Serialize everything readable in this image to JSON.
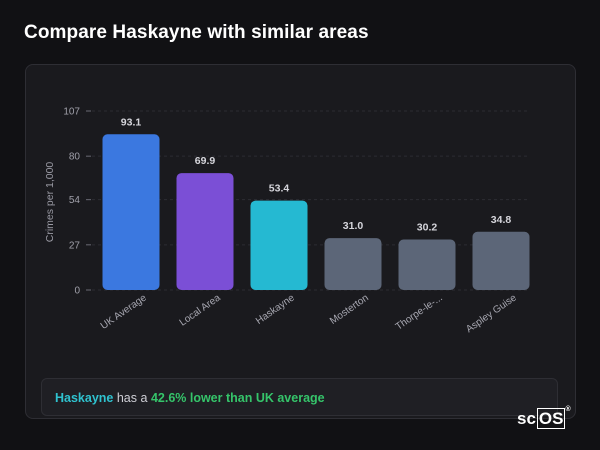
{
  "page": {
    "title": "Compare Haskayne with similar areas"
  },
  "chart_data": {
    "type": "bar",
    "title": "",
    "xlabel": "",
    "ylabel": "Crimes per 1,000",
    "ylim": [
      0,
      107
    ],
    "yticks": [
      0,
      27,
      54,
      80,
      107
    ],
    "grid": true,
    "categories": [
      "UK Average",
      "Local Area",
      "Haskayne",
      "Mosterton",
      "Thorpe-le-...",
      "Aspley Guise"
    ],
    "values": [
      93.1,
      69.9,
      53.4,
      31.0,
      30.2,
      34.8
    ],
    "value_labels": [
      "93.1",
      "69.9",
      "53.4",
      "31.0",
      "30.2",
      "34.8"
    ],
    "colors": [
      "#3b78e0",
      "#7b4fd6",
      "#25b9d2",
      "#5c6678",
      "#5c6678",
      "#5c6678"
    ]
  },
  "summary": {
    "area": "Haskayne",
    "text": "has a",
    "comparison": "42.6% lower than UK average"
  },
  "logo": {
    "text_a": "sc",
    "text_b": "OS",
    "mark": "®"
  },
  "colors": {
    "area_highlight": "#2fc2cf",
    "comparison_highlight": "#35c46a"
  }
}
